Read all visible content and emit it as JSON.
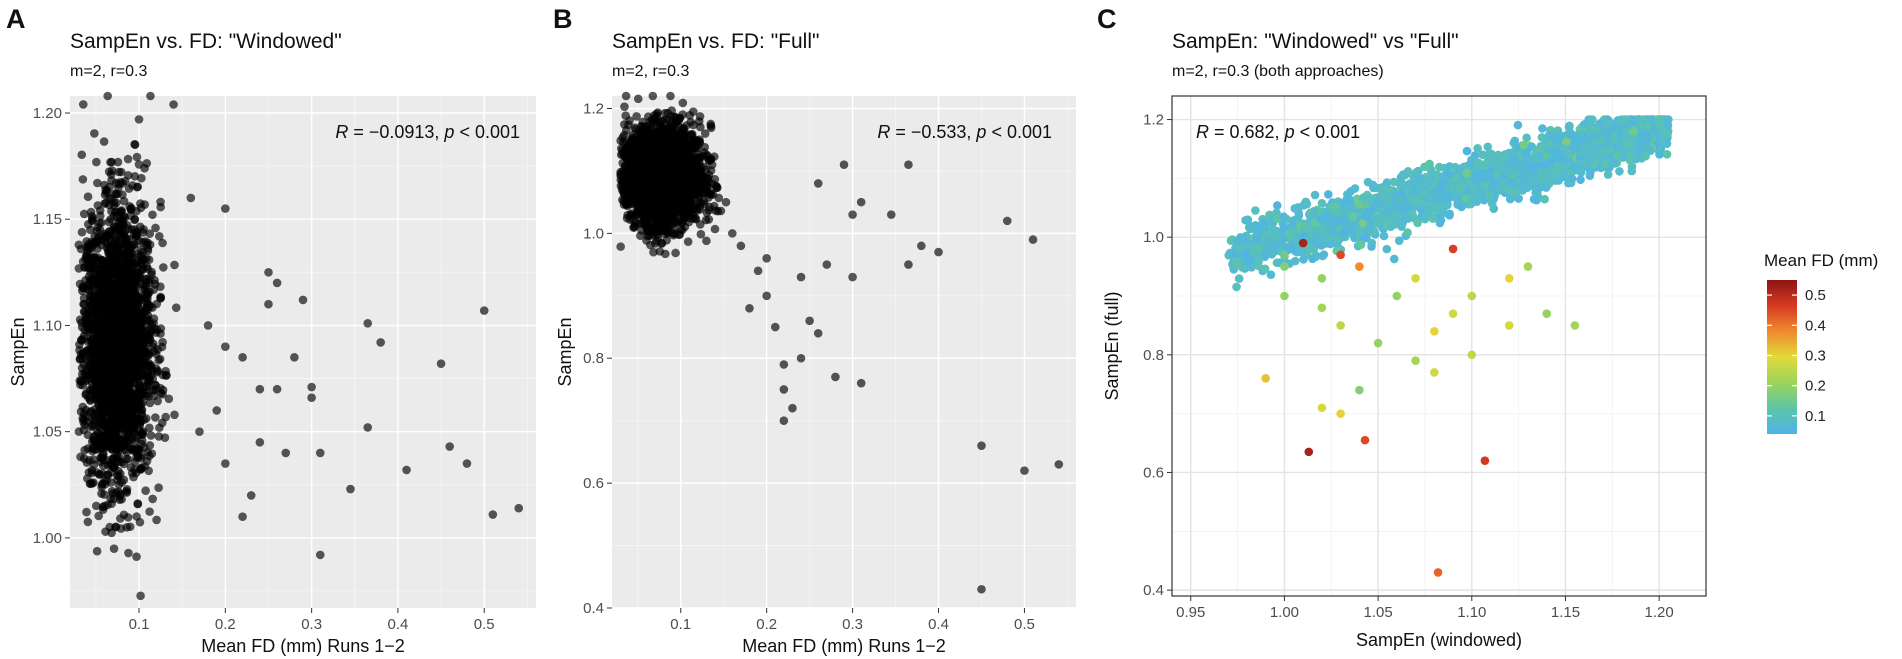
{
  "chart_data": [
    {
      "panel_label": "A",
      "type": "scatter",
      "title": "SampEn vs. FD: \"Windowed\"",
      "subtitle": "m=2, r=0.3",
      "xlabel": "Mean FD (mm) Runs 1−2",
      "ylabel": "SampEn",
      "xlim": [
        0.02,
        0.56
      ],
      "ylim": [
        0.967,
        1.208
      ],
      "xticks": [
        0.1,
        0.2,
        0.3,
        0.4,
        0.5
      ],
      "xtick_labels": [
        "0.1",
        "0.2",
        "0.3",
        "0.4",
        "0.5"
      ],
      "yticks": [
        1.0,
        1.05,
        1.1,
        1.15,
        1.2
      ],
      "ytick_labels": [
        "1.00",
        "1.05",
        "1.10",
        "1.15",
        "1.20"
      ],
      "theme": "grey",
      "grid": true,
      "stat_text": {
        "R_label": "R",
        "R_value": " = −0.0913, ",
        "p_label": "p",
        "p_value": " < 0.001"
      },
      "stat_position": "top-right",
      "point_color": "#000000",
      "point_opacity": 0.65,
      "cluster": {
        "x_center": 0.075,
        "x_sd": 0.02,
        "y_center": 1.09,
        "y_sd": 0.032,
        "n": 2500
      },
      "outliers": [
        [
          0.1,
          1.197
        ],
        [
          0.14,
          1.204
        ],
        [
          0.16,
          1.16
        ],
        [
          0.2,
          1.155
        ],
        [
          0.18,
          1.1
        ],
        [
          0.2,
          1.09
        ],
        [
          0.22,
          1.085
        ],
        [
          0.24,
          1.07
        ],
        [
          0.25,
          1.125
        ],
        [
          0.26,
          1.12
        ],
        [
          0.25,
          1.11
        ],
        [
          0.28,
          1.085
        ],
        [
          0.29,
          1.112
        ],
        [
          0.3,
          1.071
        ],
        [
          0.3,
          1.066
        ],
        [
          0.31,
          1.04
        ],
        [
          0.31,
          0.992
        ],
        [
          0.27,
          1.04
        ],
        [
          0.22,
          1.01
        ],
        [
          0.23,
          1.02
        ],
        [
          0.24,
          1.045
        ],
        [
          0.345,
          1.023
        ],
        [
          0.365,
          1.101
        ],
        [
          0.365,
          1.052
        ],
        [
          0.38,
          1.092
        ],
        [
          0.41,
          1.032
        ],
        [
          0.45,
          1.082
        ],
        [
          0.46,
          1.043
        ],
        [
          0.48,
          1.035
        ],
        [
          0.5,
          1.107
        ],
        [
          0.51,
          1.011
        ],
        [
          0.54,
          1.014
        ],
        [
          0.19,
          1.06
        ],
        [
          0.2,
          1.035
        ],
        [
          0.17,
          1.05
        ],
        [
          0.26,
          1.07
        ]
      ]
    },
    {
      "panel_label": "B",
      "type": "scatter",
      "title": "SampEn vs. FD: \"Full\"",
      "subtitle": "m=2, r=0.3",
      "xlabel": "Mean FD (mm) Runs 1−2",
      "ylabel": "SampEn",
      "xlim": [
        0.02,
        0.56
      ],
      "ylim": [
        0.4,
        1.22
      ],
      "xticks": [
        0.1,
        0.2,
        0.3,
        0.4,
        0.5
      ],
      "xtick_labels": [
        "0.1",
        "0.2",
        "0.3",
        "0.4",
        "0.5"
      ],
      "yticks": [
        0.4,
        0.6,
        0.8,
        1.0,
        1.2
      ],
      "ytick_labels": [
        "0.4",
        "0.6",
        "0.8",
        "1.0",
        "1.2"
      ],
      "theme": "grey",
      "grid": true,
      "stat_text": {
        "R_label": "R",
        "R_value": " = −0.533, ",
        "p_label": "p",
        "p_value": " < 0.001"
      },
      "stat_position": "top-right",
      "point_color": "#000000",
      "point_opacity": 0.65,
      "cluster": {
        "x_center": 0.08,
        "x_sd": 0.022,
        "y_center": 1.09,
        "y_sd": 0.04,
        "n": 2500
      },
      "outliers": [
        [
          0.2,
          0.9
        ],
        [
          0.21,
          0.85
        ],
        [
          0.22,
          0.79
        ],
        [
          0.22,
          0.75
        ],
        [
          0.22,
          0.7
        ],
        [
          0.23,
          0.72
        ],
        [
          0.24,
          0.8
        ],
        [
          0.25,
          0.86
        ],
        [
          0.26,
          0.84
        ],
        [
          0.26,
          1.08
        ],
        [
          0.28,
          0.77
        ],
        [
          0.29,
          1.11
        ],
        [
          0.3,
          0.93
        ],
        [
          0.3,
          1.03
        ],
        [
          0.31,
          1.05
        ],
        [
          0.31,
          0.76
        ],
        [
          0.345,
          1.03
        ],
        [
          0.365,
          1.11
        ],
        [
          0.365,
          0.95
        ],
        [
          0.38,
          0.98
        ],
        [
          0.4,
          0.97
        ],
        [
          0.45,
          0.66
        ],
        [
          0.48,
          1.02
        ],
        [
          0.5,
          0.62
        ],
        [
          0.51,
          0.99
        ],
        [
          0.54,
          0.63
        ],
        [
          0.45,
          0.43
        ],
        [
          0.18,
          0.88
        ],
        [
          0.19,
          0.94
        ],
        [
          0.2,
          0.96
        ],
        [
          0.24,
          0.93
        ],
        [
          0.27,
          0.95
        ],
        [
          0.17,
          0.98
        ],
        [
          0.16,
          1.0
        ]
      ]
    },
    {
      "panel_label": "C",
      "type": "scatter",
      "title": "SampEn: \"Windowed\" vs \"Full\"",
      "subtitle": "m=2, r=0.3 (both approaches)",
      "xlabel": "SampEn (windowed)",
      "ylabel": "SampEn (full)",
      "xlim": [
        0.94,
        1.225
      ],
      "ylim": [
        0.39,
        1.24
      ],
      "xticks": [
        0.95,
        1.0,
        1.05,
        1.1,
        1.15,
        1.2
      ],
      "xtick_labels": [
        "0.95",
        "1.00",
        "1.05",
        "1.10",
        "1.15",
        "1.20"
      ],
      "yticks": [
        0.4,
        0.6,
        0.8,
        1.0,
        1.2
      ],
      "ytick_labels": [
        "0.4",
        "0.6",
        "0.8",
        "1.0",
        "1.2"
      ],
      "theme": "bw",
      "grid": true,
      "stat_text": {
        "R_label": "R",
        "R_value": " = 0.682, ",
        "p_label": "p",
        "p_value": " < 0.001"
      },
      "stat_position": "top-left",
      "color_by": "Mean FD (mm)",
      "legend": {
        "title": "Mean FD (mm)",
        "range": [
          0.04,
          0.55
        ],
        "ticks": [
          0.1,
          0.2,
          0.3,
          0.4,
          0.5
        ],
        "tick_labels": [
          "0.1",
          "0.2",
          "0.3",
          "0.4",
          "0.5"
        ],
        "colors": [
          "#4fb3e8",
          "#5cc5a8",
          "#9bd45a",
          "#e3d93a",
          "#f08a2c",
          "#d63b22",
          "#8e1414"
        ],
        "placement": "right"
      },
      "trend": {
        "y_at_x0_97": 0.985,
        "slope": 0.92,
        "spread": 0.032,
        "n": 2300
      },
      "outliers": [
        [
          1.01,
          0.99,
          0.52
        ],
        [
          1.03,
          0.97,
          0.45
        ],
        [
          1.04,
          0.95,
          0.38
        ],
        [
          1.09,
          0.98,
          0.46
        ],
        [
          1.0,
          0.95,
          0.18
        ],
        [
          1.0,
          0.9,
          0.2
        ],
        [
          1.02,
          0.88,
          0.22
        ],
        [
          1.03,
          0.85,
          0.25
        ],
        [
          1.05,
          0.82,
          0.2
        ],
        [
          1.07,
          0.79,
          0.22
        ],
        [
          1.08,
          0.84,
          0.3
        ],
        [
          1.09,
          0.87,
          0.27
        ],
        [
          1.1,
          0.9,
          0.25
        ],
        [
          1.12,
          0.93,
          0.3
        ],
        [
          1.12,
          0.85,
          0.28
        ],
        [
          1.14,
          0.87,
          0.2
        ],
        [
          1.155,
          0.85,
          0.22
        ],
        [
          1.04,
          0.74,
          0.18
        ],
        [
          1.02,
          0.71,
          0.28
        ],
        [
          1.03,
          0.7,
          0.3
        ],
        [
          0.99,
          0.76,
          0.32
        ],
        [
          1.08,
          0.77,
          0.27
        ],
        [
          1.1,
          0.8,
          0.26
        ],
        [
          1.013,
          0.635,
          0.52
        ],
        [
          1.043,
          0.655,
          0.45
        ],
        [
          1.107,
          0.62,
          0.47
        ],
        [
          1.082,
          0.43,
          0.42
        ],
        [
          1.06,
          0.9,
          0.2
        ],
        [
          1.0,
          0.97,
          0.15
        ],
        [
          1.02,
          0.93,
          0.2
        ],
        [
          1.07,
          0.93,
          0.28
        ],
        [
          1.13,
          0.95,
          0.22
        ]
      ]
    }
  ]
}
